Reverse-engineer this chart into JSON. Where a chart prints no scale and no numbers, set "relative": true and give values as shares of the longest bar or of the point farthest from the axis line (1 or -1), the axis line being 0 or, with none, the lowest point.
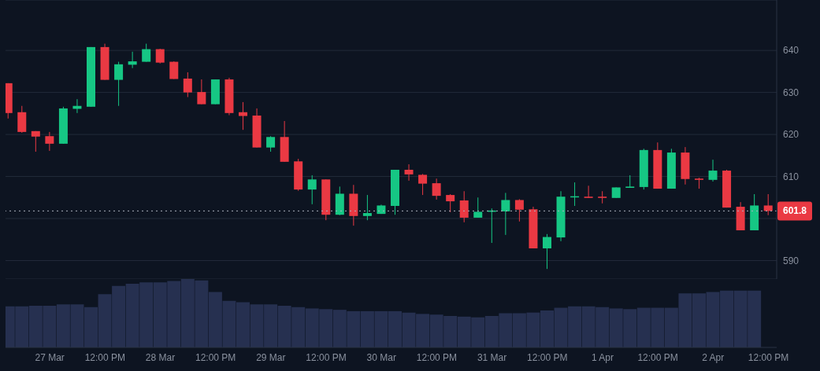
{
  "chart_data": [
    {
      "type": "candlestick",
      "x": [
        "--03-26T15:00",
        "--03-26T18:00",
        "--03-26T21:00",
        "--03-27T00:00",
        "--03-27T03:00",
        "--03-27T06:00",
        "--03-27T09:00",
        "--03-27T12:00",
        "--03-27T15:00",
        "--03-27T18:00",
        "--03-27T21:00",
        "--03-28T00:00",
        "--03-28T03:00",
        "--03-28T06:00",
        "--03-28T09:00",
        "--03-28T12:00",
        "--03-28T15:00",
        "--03-28T18:00",
        "--03-28T21:00",
        "--03-29T00:00",
        "--03-29T03:00",
        "--03-29T06:00",
        "--03-29T09:00",
        "--03-29T12:00",
        "--03-29T15:00",
        "--03-29T18:00",
        "--03-29T21:00",
        "--03-30T00:00",
        "--03-30T03:00",
        "--03-30T06:00",
        "--03-30T09:00",
        "--03-30T12:00",
        "--03-30T15:00",
        "--03-30T18:00",
        "--03-30T21:00",
        "--03-31T00:00",
        "--03-31T03:00",
        "--03-31T06:00",
        "--03-31T09:00",
        "--03-31T12:00",
        "--03-31T15:00",
        "--03-31T18:00",
        "--03-31T21:00",
        "--04-01T00:00",
        "--04-01T03:00",
        "--04-01T06:00",
        "--04-01T09:00",
        "--04-01T12:00",
        "--04-01T15:00",
        "--04-01T18:00",
        "--04-01T21:00",
        "--04-02T00:00",
        "--04-02T03:00",
        "--04-02T06:00",
        "--04-02T09:00",
        "--04-02T12:00"
      ],
      "ohlc": [
        [
          632.2,
          632.2,
          623.8,
          625.1
        ],
        [
          625.3,
          626.8,
          620.4,
          620.6
        ],
        [
          620.8,
          620.8,
          615.9,
          619.5
        ],
        [
          619.6,
          620.6,
          616.1,
          617.8
        ],
        [
          617.8,
          626.6,
          617.8,
          626.2
        ],
        [
          626.1,
          628.4,
          625.1,
          626.8
        ],
        [
          626.6,
          640.8,
          626.6,
          640.8
        ],
        [
          640.8,
          641.6,
          633.0,
          633.0
        ],
        [
          633.0,
          637.3,
          626.8,
          636.7
        ],
        [
          636.6,
          639.7,
          635.8,
          637.4
        ],
        [
          637.3,
          641.6,
          637.3,
          640.3
        ],
        [
          640.3,
          640.4,
          636.9,
          637.1
        ],
        [
          637.3,
          637.4,
          633.2,
          633.2
        ],
        [
          633.3,
          634.8,
          628.9,
          630.0
        ],
        [
          630.1,
          633.1,
          627.2,
          627.2
        ],
        [
          627.2,
          633.1,
          627.2,
          633.1
        ],
        [
          633.1,
          633.5,
          624.6,
          625.1
        ],
        [
          625.3,
          627.7,
          621.1,
          624.4
        ],
        [
          624.5,
          626.2,
          616.9,
          616.9
        ],
        [
          616.9,
          619.6,
          615.9,
          619.4
        ],
        [
          619.4,
          623.2,
          613.5,
          613.5
        ],
        [
          613.6,
          614.2,
          606.6,
          606.9
        ],
        [
          606.9,
          610.3,
          603.4,
          609.3
        ],
        [
          609.3,
          609.3,
          599.6,
          600.9
        ],
        [
          600.9,
          607.6,
          600.8,
          605.9
        ],
        [
          605.9,
          608.0,
          598.3,
          600.6
        ],
        [
          600.6,
          605.6,
          599.6,
          601.3
        ],
        [
          601.1,
          603.3,
          601.1,
          603.1
        ],
        [
          603.0,
          611.6,
          600.9,
          611.6
        ],
        [
          611.6,
          612.9,
          609.0,
          610.5
        ],
        [
          610.4,
          610.6,
          605.6,
          608.3
        ],
        [
          608.4,
          609.5,
          604.5,
          605.4
        ],
        [
          605.6,
          605.8,
          601.5,
          604.1
        ],
        [
          604.3,
          606.5,
          599.1,
          600.2
        ],
        [
          600.2,
          605.0,
          600.2,
          601.6
        ],
        [
          601.6,
          602.4,
          594.2,
          601.9
        ],
        [
          601.7,
          606.1,
          596.1,
          604.4
        ],
        [
          604.4,
          604.6,
          599.3,
          602.1
        ],
        [
          602.2,
          602.8,
          592.9,
          592.9
        ],
        [
          592.9,
          596.3,
          588.0,
          595.6
        ],
        [
          595.5,
          606.5,
          594.6,
          605.2
        ],
        [
          605.1,
          608.6,
          603.0,
          605.3
        ],
        [
          605.2,
          607.8,
          604.9,
          604.9
        ],
        [
          605.2,
          606.5,
          603.6,
          604.9
        ],
        [
          604.9,
          607.4,
          604.9,
          607.4
        ],
        [
          607.3,
          610.3,
          607.3,
          607.6
        ],
        [
          607.5,
          616.6,
          606.9,
          616.3
        ],
        [
          616.3,
          618.1,
          607.1,
          607.1
        ],
        [
          607.1,
          616.6,
          607.1,
          615.7
        ],
        [
          615.7,
          617.0,
          608.1,
          609.4
        ],
        [
          609.5,
          609.7,
          607.1,
          609.2
        ],
        [
          609.2,
          614.0,
          608.8,
          611.4
        ],
        [
          611.4,
          611.6,
          602.6,
          602.6
        ],
        [
          602.8,
          603.9,
          597.2,
          597.2
        ],
        [
          597.2,
          605.8,
          597.2,
          603.1
        ],
        [
          603.1,
          605.8,
          600.8,
          601.8
        ]
      ],
      "colors": [
        "#ea3943",
        "#ea3943",
        "#ea3943",
        "#ea3943",
        "#16c784",
        "#16c784",
        "#16c784",
        "#ea3943",
        "#16c784",
        "#16c784",
        "#16c784",
        "#ea3943",
        "#ea3943",
        "#ea3943",
        "#ea3943",
        "#16c784",
        "#ea3943",
        "#ea3943",
        "#ea3943",
        "#16c784",
        "#ea3943",
        "#ea3943",
        "#16c784",
        "#ea3943",
        "#16c784",
        "#ea3943",
        "#16c784",
        "#16c784",
        "#16c784",
        "#ea3943",
        "#ea3943",
        "#ea3943",
        "#ea3943",
        "#ea3943",
        "#16c784",
        "#16c784",
        "#16c784",
        "#ea3943",
        "#ea3943",
        "#16c784",
        "#16c784",
        "#16c784",
        "#ea3943",
        "#ea3943",
        "#16c784",
        "#16c784",
        "#16c784",
        "#ea3943",
        "#16c784",
        "#ea3943",
        "#ea3943",
        "#16c784",
        "#ea3943",
        "#ea3943",
        "#16c784",
        "#ea3943"
      ],
      "xlim": [
        "--03-26T14:24",
        "--04-02T13:48"
      ],
      "ylim": [
        585.6,
        652
      ],
      "yticks": [
        590,
        {
          "value": 600,
          "label": null
        },
        610,
        620,
        630,
        640
      ],
      "grid": "y",
      "tick_labels": "y",
      "ref_lines": [
        {
          "axis": "y",
          "value": 601.8,
          "label": "601.8",
          "color": "#aab0bb",
          "line_style": "dotted"
        }
      ]
    },
    {
      "type": "bar",
      "relative": true,
      "x": [
        "--03-26T15:00",
        "--03-26T18:00",
        "--03-26T21:00",
        "--03-27T00:00",
        "--03-27T03:00",
        "--03-27T06:00",
        "--03-27T09:00",
        "--03-27T12:00",
        "--03-27T15:00",
        "--03-27T18:00",
        "--03-27T21:00",
        "--03-28T00:00",
        "--03-28T03:00",
        "--03-28T06:00",
        "--03-28T09:00",
        "--03-28T12:00",
        "--03-28T15:00",
        "--03-28T18:00",
        "--03-28T21:00",
        "--03-29T00:00",
        "--03-29T03:00",
        "--03-29T06:00",
        "--03-29T09:00",
        "--03-29T12:00",
        "--03-29T15:00",
        "--03-29T18:00",
        "--03-29T21:00",
        "--03-30T00:00",
        "--03-30T03:00",
        "--03-30T06:00",
        "--03-30T09:00",
        "--03-30T12:00",
        "--03-30T15:00",
        "--03-30T18:00",
        "--03-30T21:00",
        "--03-31T00:00",
        "--03-31T03:00",
        "--03-31T06:00",
        "--03-31T09:00",
        "--03-31T12:00",
        "--03-31T15:00",
        "--03-31T18:00",
        "--03-31T21:00",
        "--04-01T00:00",
        "--04-01T03:00",
        "--04-01T06:00",
        "--04-01T09:00",
        "--04-01T12:00",
        "--04-01T15:00",
        "--04-01T18:00",
        "--04-01T21:00",
        "--04-02T00:00",
        "--04-02T03:00",
        "--04-02T06:00",
        "--04-02T09:00"
      ],
      "values": [
        0.6,
        0.6,
        0.61,
        0.61,
        0.63,
        0.63,
        0.59,
        0.78,
        0.9,
        0.93,
        0.95,
        0.95,
        0.97,
        1,
        0.98,
        0.81,
        0.68,
        0.66,
        0.63,
        0.63,
        0.61,
        0.59,
        0.57,
        0.56,
        0.55,
        0.53,
        0.53,
        0.53,
        0.53,
        0.51,
        0.49,
        0.48,
        0.46,
        0.45,
        0.44,
        0.46,
        0.5,
        0.5,
        0.51,
        0.54,
        0.58,
        0.6,
        0.6,
        0.59,
        0.57,
        0.56,
        0.58,
        0.58,
        0.58,
        0.79,
        0.79,
        0.81,
        0.83,
        0.83,
        0.83
      ],
      "color": "#263050",
      "xlim": [
        "--03-26T14:24",
        "--04-02T13:48"
      ],
      "xticks": [
        {
          "value": "--03-27T00:00",
          "label": "27 Mar"
        },
        {
          "value": "--03-27T12:00",
          "label": "12:00 PM"
        },
        {
          "value": "--03-28T00:00",
          "label": "28 Mar"
        },
        {
          "value": "--03-28T12:00",
          "label": "12:00 PM"
        },
        {
          "value": "--03-29T00:00",
          "label": "29 Mar"
        },
        {
          "value": "--03-29T12:00",
          "label": "12:00 PM"
        },
        {
          "value": "--03-30T00:00",
          "label": "30 Mar"
        },
        {
          "value": "--03-30T12:00",
          "label": "12:00 PM"
        },
        {
          "value": "--03-31T00:00",
          "label": "31 Mar"
        },
        {
          "value": "--03-31T12:00",
          "label": "12:00 PM"
        },
        {
          "value": "--04-01T00:00",
          "label": "1 Apr"
        },
        {
          "value": "--04-01T12:00",
          "label": "12:00 PM"
        },
        {
          "value": "--04-02T00:00",
          "label": "2 Apr"
        },
        {
          "value": "--04-02T12:00",
          "label": "12:00 PM"
        }
      ],
      "tick_labels": "x"
    }
  ]
}
